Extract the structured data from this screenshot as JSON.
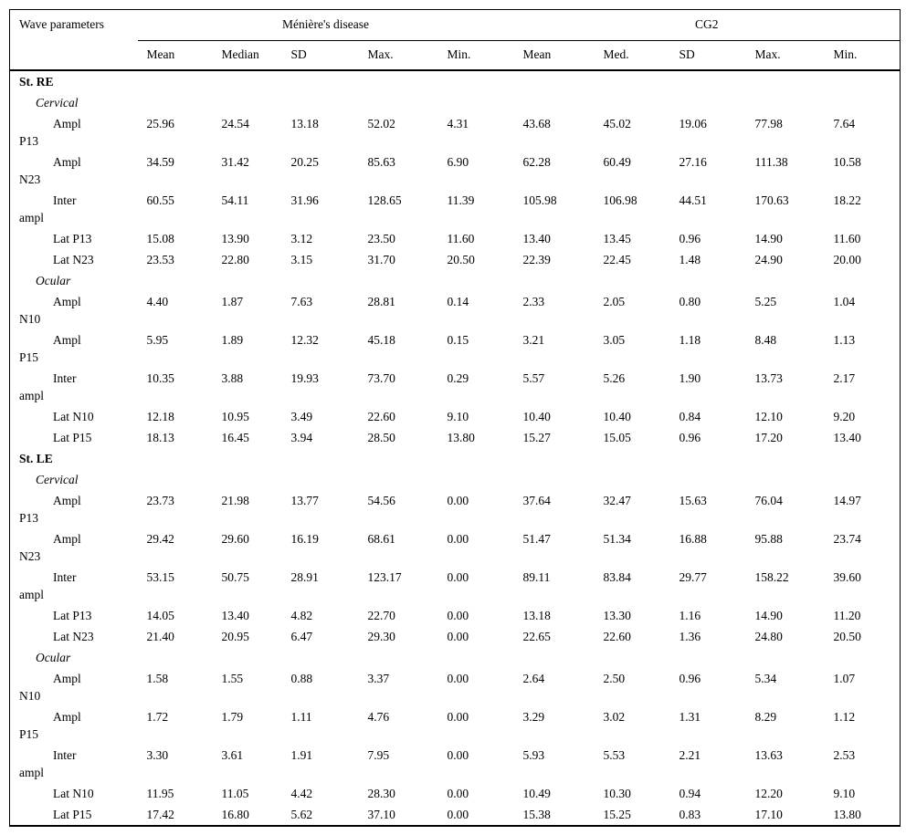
{
  "colors": {
    "text": "#000000",
    "background": "#ffffff",
    "rule": "#000000"
  },
  "table": {
    "col1_header": "Wave parameters",
    "groups": [
      {
        "label": "Ménière's disease",
        "cols": [
          "Mean",
          "Median",
          "SD",
          "Max.",
          "Min."
        ]
      },
      {
        "label": "CG2",
        "cols": [
          "Mean",
          "Med.",
          "SD",
          "Max.",
          "Min."
        ]
      }
    ],
    "sections": [
      {
        "title": "St. RE",
        "subsections": [
          {
            "title": "Cervical",
            "rows": [
              {
                "label_lines": [
                  "Ampl",
                  "P13"
                ],
                "values": [
                  "25.96",
                  "24.54",
                  "13.18",
                  "52.02",
                  "4.31",
                  "43.68",
                  "45.02",
                  "19.06",
                  "77.98",
                  "7.64"
                ]
              },
              {
                "label_lines": [
                  "Ampl",
                  "N23"
                ],
                "values": [
                  "34.59",
                  "31.42",
                  "20.25",
                  "85.63",
                  "6.90",
                  "62.28",
                  "60.49",
                  "27.16",
                  "111.38",
                  "10.58"
                ]
              },
              {
                "label_lines": [
                  "Inter",
                  "ampl"
                ],
                "values": [
                  "60.55",
                  "54.11",
                  "31.96",
                  "128.65",
                  "11.39",
                  "105.98",
                  "106.98",
                  "44.51",
                  "170.63",
                  "18.22"
                ]
              },
              {
                "label_lines": [
                  "Lat P13"
                ],
                "values": [
                  "15.08",
                  "13.90",
                  "3.12",
                  "23.50",
                  "11.60",
                  "13.40",
                  "13.45",
                  "0.96",
                  "14.90",
                  "11.60"
                ]
              },
              {
                "label_lines": [
                  "Lat N23"
                ],
                "values": [
                  "23.53",
                  "22.80",
                  "3.15",
                  "31.70",
                  "20.50",
                  "22.39",
                  "22.45",
                  "1.48",
                  "24.90",
                  "20.00"
                ]
              }
            ]
          },
          {
            "title": "Ocular",
            "rows": [
              {
                "label_lines": [
                  "Ampl",
                  "N10"
                ],
                "values": [
                  "4.40",
                  "1.87",
                  "7.63",
                  "28.81",
                  "0.14",
                  "2.33",
                  "2.05",
                  "0.80",
                  "5.25",
                  "1.04"
                ]
              },
              {
                "label_lines": [
                  "Ampl",
                  "P15"
                ],
                "values": [
                  "5.95",
                  "1.89",
                  "12.32",
                  "45.18",
                  "0.15",
                  "3.21",
                  "3.05",
                  "1.18",
                  "8.48",
                  "1.13"
                ]
              },
              {
                "label_lines": [
                  "Inter",
                  "ampl"
                ],
                "values": [
                  "10.35",
                  "3.88",
                  "19.93",
                  "73.70",
                  "0.29",
                  "5.57",
                  "5.26",
                  "1.90",
                  "13.73",
                  "2.17"
                ]
              },
              {
                "label_lines": [
                  "Lat N10"
                ],
                "values": [
                  "12.18",
                  "10.95",
                  "3.49",
                  "22.60",
                  "9.10",
                  "10.40",
                  "10.40",
                  "0.84",
                  "12.10",
                  "9.20"
                ]
              },
              {
                "label_lines": [
                  "Lat P15"
                ],
                "values": [
                  "18.13",
                  "16.45",
                  "3.94",
                  "28.50",
                  "13.80",
                  "15.27",
                  "15.05",
                  "0.96",
                  "17.20",
                  "13.40"
                ]
              }
            ]
          }
        ]
      },
      {
        "title": "St. LE",
        "subsections": [
          {
            "title": "Cervical",
            "rows": [
              {
                "label_lines": [
                  "Ampl",
                  "P13"
                ],
                "values": [
                  "23.73",
                  "21.98",
                  "13.77",
                  "54.56",
                  "0.00",
                  "37.64",
                  "32.47",
                  "15.63",
                  "76.04",
                  "14.97"
                ]
              },
              {
                "label_lines": [
                  "Ampl",
                  "N23"
                ],
                "values": [
                  "29.42",
                  "29.60",
                  "16.19",
                  "68.61",
                  "0.00",
                  "51.47",
                  "51.34",
                  "16.88",
                  "95.88",
                  "23.74"
                ]
              },
              {
                "label_lines": [
                  "Inter",
                  "ampl"
                ],
                "values": [
                  "53.15",
                  "50.75",
                  "28.91",
                  "123.17",
                  "0.00",
                  "89.11",
                  "83.84",
                  "29.77",
                  "158.22",
                  "39.60"
                ]
              },
              {
                "label_lines": [
                  "Lat P13"
                ],
                "values": [
                  "14.05",
                  "13.40",
                  "4.82",
                  "22.70",
                  "0.00",
                  "13.18",
                  "13.30",
                  "1.16",
                  "14.90",
                  "11.20"
                ]
              },
              {
                "label_lines": [
                  "Lat N23"
                ],
                "values": [
                  "21.40",
                  "20.95",
                  "6.47",
                  "29.30",
                  "0.00",
                  "22.65",
                  "22.60",
                  "1.36",
                  "24.80",
                  "20.50"
                ]
              }
            ]
          },
          {
            "title": "Ocular",
            "rows": [
              {
                "label_lines": [
                  "Ampl",
                  "N10"
                ],
                "values": [
                  "1.58",
                  "1.55",
                  "0.88",
                  "3.37",
                  "0.00",
                  "2.64",
                  "2.50",
                  "0.96",
                  "5.34",
                  "1.07"
                ]
              },
              {
                "label_lines": [
                  "Ampl",
                  "P15"
                ],
                "values": [
                  "1.72",
                  "1.79",
                  "1.11",
                  "4.76",
                  "0.00",
                  "3.29",
                  "3.02",
                  "1.31",
                  "8.29",
                  "1.12"
                ]
              },
              {
                "label_lines": [
                  "Inter",
                  "ampl"
                ],
                "values": [
                  "3.30",
                  "3.61",
                  "1.91",
                  "7.95",
                  "0.00",
                  "5.93",
                  "5.53",
                  "2.21",
                  "13.63",
                  "2.53"
                ]
              },
              {
                "label_lines": [
                  "Lat N10"
                ],
                "values": [
                  "11.95",
                  "11.05",
                  "4.42",
                  "28.30",
                  "0.00",
                  "10.49",
                  "10.30",
                  "0.94",
                  "12.20",
                  "9.10"
                ]
              },
              {
                "label_lines": [
                  "Lat P15"
                ],
                "values": [
                  "17.42",
                  "16.80",
                  "5.62",
                  "37.10",
                  "0.00",
                  "15.38",
                  "15.25",
                  "0.83",
                  "17.10",
                  "13.80"
                ]
              }
            ]
          }
        ]
      }
    ]
  }
}
